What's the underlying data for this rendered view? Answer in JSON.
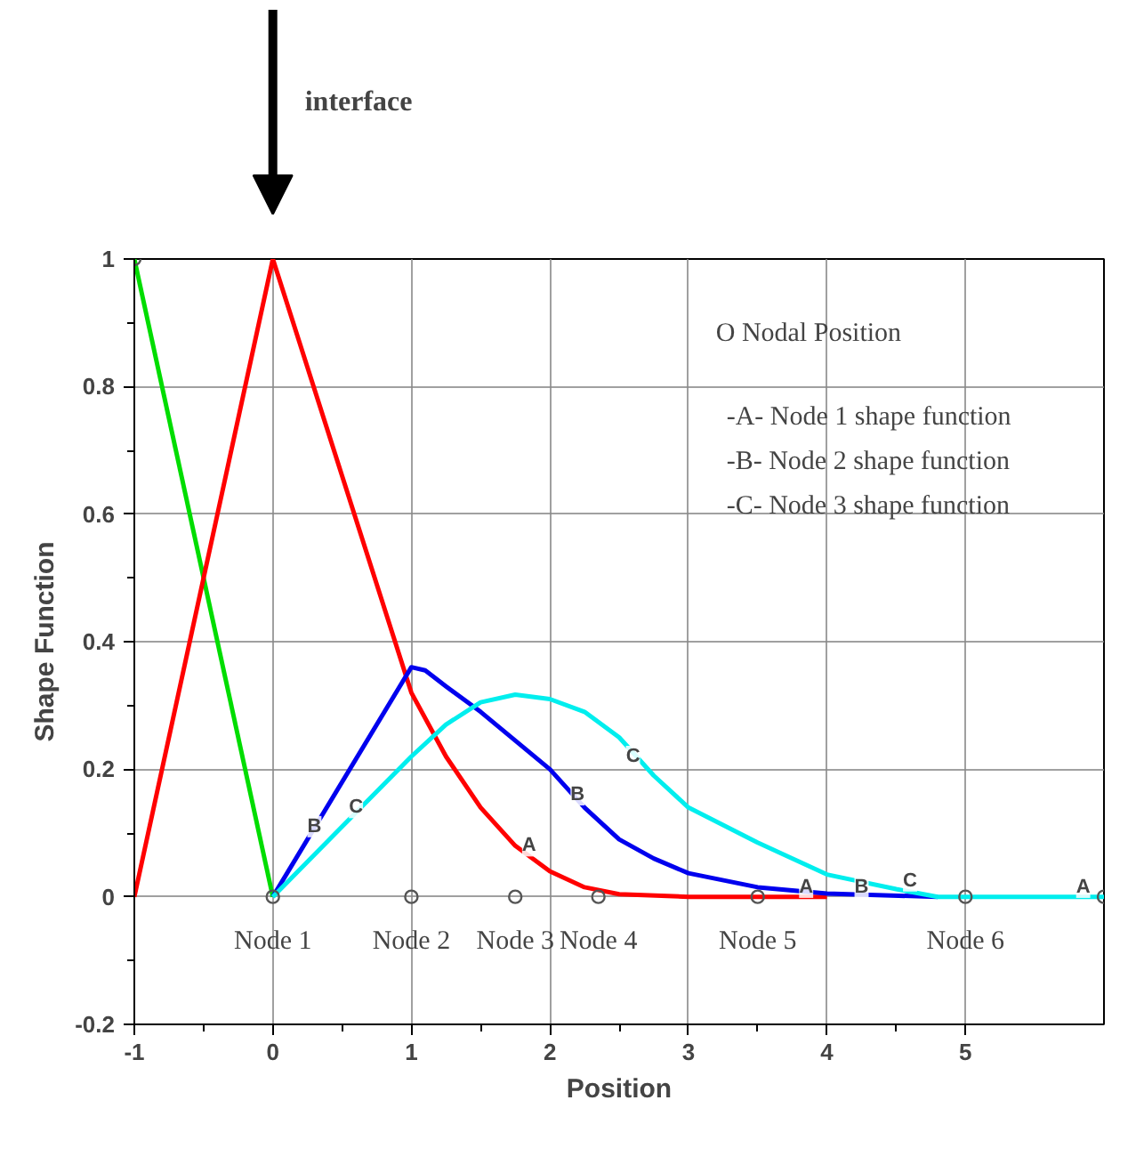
{
  "chart_data": {
    "type": "line",
    "xlabel": "Position",
    "ylabel": "Shape Function",
    "xlim": [
      -1,
      6
    ],
    "xticks": [
      -1,
      0,
      1,
      2,
      3,
      4,
      5
    ],
    "ylim": [
      -0.2,
      1
    ],
    "yticks": [
      -0.2,
      0,
      0.2,
      0.4,
      0.6,
      0.8,
      1
    ],
    "grid": true,
    "series": [
      {
        "color": "#00dd00",
        "x": [
          -1,
          0
        ],
        "values": [
          1,
          0
        ]
      },
      {
        "color": "#ff0000",
        "x": [
          -1,
          0,
          0.5,
          1,
          1.25,
          1.5,
          1.75,
          2,
          2.25,
          2.5,
          3,
          4
        ],
        "values": [
          0,
          1,
          0.66,
          0.32,
          0.22,
          0.14,
          0.08,
          0.04,
          0.015,
          0.004,
          0,
          0
        ]
      },
      {
        "color": "#0000ee",
        "x": [
          0,
          1,
          1.1,
          1.25,
          1.5,
          1.75,
          2,
          2.25,
          2.5,
          2.75,
          3,
          3.5,
          4,
          4.8
        ],
        "values": [
          0,
          0.36,
          0.355,
          0.33,
          0.29,
          0.245,
          0.2,
          0.14,
          0.09,
          0.06,
          0.037,
          0.015,
          0.005,
          0
        ]
      },
      {
        "color": "#00eeee",
        "x": [
          0,
          0.5,
          1,
          1.25,
          1.5,
          1.75,
          2,
          2.25,
          2.5,
          2.75,
          3,
          3.5,
          4,
          4.5,
          4.8,
          6
        ],
        "values": [
          0,
          0.11,
          0.22,
          0.27,
          0.305,
          0.317,
          0.31,
          0.29,
          0.25,
          0.19,
          0.14,
          0.085,
          0.035,
          0.012,
          0,
          0
        ]
      },
      {
        "type": "scatter",
        "marker": "circle",
        "color": "#555555",
        "x": [
          -1,
          0,
          1,
          1.75,
          2.35,
          3.5,
          5,
          6
        ],
        "values": [
          1,
          0,
          0,
          0,
          0,
          0,
          0,
          0
        ]
      }
    ],
    "annotations": [
      "interface",
      "O Nodal Position",
      "-A- Node 1 shape function",
      "-B- Node 2 shape function",
      "-C- Node 3 shape function",
      "Node 1",
      "Node 2",
      "Node 3",
      "Node 4",
      "Node 5",
      "Node 6",
      {
        "text": "A",
        "x": 1.85,
        "y": 0.08
      },
      {
        "text": "A",
        "x": 3.85,
        "y": 0.015
      },
      {
        "text": "A",
        "x": 5.85,
        "y": 0.015
      },
      {
        "text": "B",
        "x": 0.3,
        "y": 0.11
      },
      {
        "text": "B",
        "x": 2.2,
        "y": 0.16
      },
      {
        "text": "B",
        "x": 4.25,
        "y": 0.015
      },
      {
        "text": "C",
        "x": 0.6,
        "y": 0.14
      },
      {
        "text": "C",
        "x": 2.6,
        "y": 0.22
      },
      {
        "text": "C",
        "x": 4.6,
        "y": 0.025
      }
    ]
  }
}
